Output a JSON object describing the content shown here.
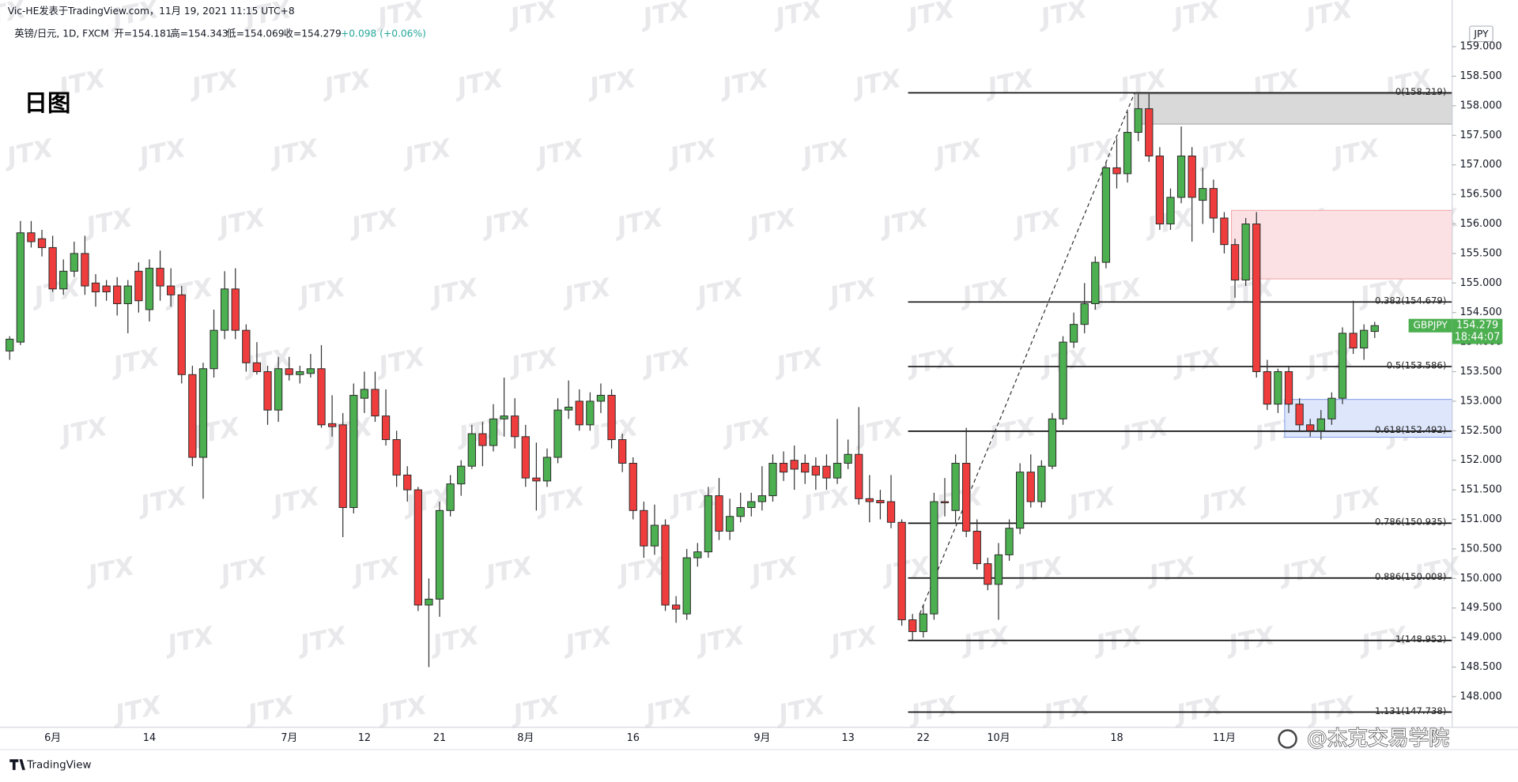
{
  "header": {
    "author_line": "Vic-HE发表于TradingView.com，11月 19, 2021 11:15 UTC+8",
    "symbol": "英镑/日元, 1D, FXCM",
    "ohlc": [
      "开=154.181",
      "高=154.343",
      "低=154.069",
      "收=154.279"
    ],
    "change": "+0.098 (+0.06%)",
    "currency": "JPY"
  },
  "watermark": "JTX",
  "footer": {
    "logo": "TradingView",
    "credit": "@杰克交易学院"
  },
  "chart_data": {
    "type": "candlestick",
    "title": "日图",
    "categories": [
      null,
      null,
      null,
      null,
      "6月",
      null,
      null,
      null,
      null,
      null,
      null,
      null,
      null,
      "14",
      null,
      null,
      null,
      null,
      null,
      null,
      null,
      null,
      null,
      null,
      null,
      null,
      "7月",
      null,
      null,
      null,
      null,
      null,
      null,
      "12",
      null,
      null,
      null,
      null,
      null,
      null,
      "21",
      null,
      null,
      null,
      null,
      null,
      null,
      null,
      "8月",
      null,
      null,
      null,
      null,
      null,
      null,
      null,
      null,
      null,
      "16",
      null,
      null,
      null,
      null,
      null,
      null,
      null,
      null,
      null,
      null,
      null,
      "9月",
      null,
      null,
      null,
      null,
      null,
      null,
      null,
      "13",
      null,
      null,
      null,
      null,
      null,
      null,
      "22",
      null,
      null,
      null,
      null,
      null,
      null,
      "10月",
      null,
      null,
      null,
      null,
      null,
      null,
      null,
      null,
      null,
      null,
      "18",
      null,
      null,
      null,
      null,
      null,
      null,
      null,
      null,
      null,
      "11月",
      null,
      null,
      null,
      null,
      null,
      null,
      null,
      null,
      null,
      null,
      null,
      null,
      null,
      null
    ],
    "open": [
      153.85,
      154.0,
      155.85,
      155.75,
      155.6,
      154.9,
      155.2,
      155.5,
      155.0,
      154.95,
      154.95,
      154.65,
      155.2,
      154.55,
      155.25,
      154.95,
      154.8,
      153.45,
      152.05,
      153.55,
      154.2,
      154.9,
      154.2,
      153.65,
      153.5,
      152.85,
      153.55,
      153.45,
      153.47,
      153.55,
      152.62,
      152.6,
      151.2,
      153.05,
      153.2,
      152.75,
      152.35,
      151.75,
      151.5,
      149.55,
      149.65,
      151.15,
      151.6,
      151.9,
      152.45,
      152.25,
      152.7,
      152.75,
      152.4,
      151.7,
      151.65,
      152.05,
      152.85,
      153.0,
      152.6,
      153.0,
      153.1,
      152.35,
      151.95,
      151.15,
      150.55,
      150.9,
      149.55,
      149.4,
      150.35,
      150.45,
      151.4,
      150.8,
      151.05,
      151.2,
      151.3,
      151.4,
      151.95,
      152.0,
      151.95,
      151.9,
      151.9,
      151.7,
      151.95,
      152.1,
      151.35,
      151.32,
      151.3,
      150.95,
      149.3,
      149.1,
      149.4,
      151.3,
      151.15,
      151.95,
      150.8,
      150.25,
      149.9,
      150.4,
      150.85,
      151.8,
      151.3,
      151.9,
      152.7,
      154.0,
      154.3,
      154.65,
      155.35,
      156.95,
      156.85,
      157.55,
      157.95,
      157.15,
      156.0,
      156.45,
      157.15,
      156.4,
      156.6,
      156.1,
      155.65,
      155.05,
      156.0,
      153.5,
      152.95,
      153.5,
      152.95,
      152.6,
      152.5,
      152.7,
      153.05,
      154.15,
      153.9,
      154.181
    ],
    "high": [
      154.1,
      156.05,
      156.05,
      155.9,
      155.8,
      155.4,
      155.7,
      155.8,
      155.15,
      155.05,
      155.1,
      155.05,
      155.35,
      155.4,
      155.55,
      155.25,
      154.95,
      153.6,
      153.65,
      154.55,
      155.2,
      155.25,
      154.3,
      154.0,
      153.6,
      153.75,
      153.75,
      153.6,
      153.8,
      153.95,
      153.1,
      152.8,
      153.3,
      153.5,
      153.5,
      153.2,
      152.5,
      151.9,
      151.55,
      150.0,
      151.3,
      151.75,
      152.0,
      152.6,
      152.65,
      152.95,
      153.4,
      153.05,
      152.6,
      152.3,
      152.2,
      153.05,
      153.35,
      153.2,
      153.15,
      153.3,
      153.2,
      152.45,
      152.05,
      151.3,
      151.25,
      151.0,
      149.7,
      150.5,
      150.6,
      151.55,
      151.7,
      151.35,
      151.45,
      151.45,
      151.9,
      152.1,
      152.15,
      152.25,
      152.1,
      152.05,
      152.1,
      152.7,
      152.35,
      152.9,
      151.75,
      151.5,
      151.75,
      151.0,
      149.4,
      149.55,
      151.45,
      151.7,
      152.1,
      152.55,
      151.0,
      150.35,
      150.6,
      151.0,
      151.95,
      152.1,
      152.0,
      152.8,
      154.1,
      154.5,
      155.0,
      155.45,
      157.05,
      157.45,
      157.9,
      158.2,
      158.2,
      157.3,
      156.6,
      157.65,
      157.3,
      156.95,
      156.75,
      156.2,
      155.75,
      156.1,
      156.2,
      153.7,
      153.55,
      153.6,
      153.05,
      152.7,
      152.85,
      153.15,
      154.25,
      154.7,
      154.3,
      154.343
    ],
    "low": [
      153.7,
      153.95,
      155.6,
      155.45,
      154.85,
      154.8,
      155.1,
      154.8,
      154.6,
      154.7,
      154.45,
      154.15,
      154.5,
      154.35,
      154.7,
      154.6,
      153.3,
      151.9,
      151.35,
      153.4,
      154.05,
      154.05,
      153.5,
      153.45,
      152.6,
      152.65,
      153.35,
      153.3,
      153.4,
      152.55,
      152.4,
      150.7,
      151.1,
      152.8,
      152.65,
      152.25,
      151.55,
      151.3,
      149.45,
      148.5,
      149.35,
      151.05,
      151.4,
      151.85,
      151.9,
      152.15,
      152.4,
      152.2,
      151.55,
      151.15,
      151.55,
      151.95,
      152.7,
      152.5,
      152.5,
      152.8,
      152.2,
      151.8,
      151.0,
      150.35,
      150.4,
      149.45,
      149.25,
      149.3,
      150.2,
      150.35,
      150.65,
      150.65,
      150.95,
      151.05,
      151.15,
      151.3,
      151.65,
      151.5,
      151.6,
      151.5,
      151.5,
      151.6,
      151.85,
      151.25,
      150.95,
      151.0,
      150.85,
      149.2,
      148.95,
      149.0,
      149.3,
      151.05,
      150.95,
      150.7,
      150.15,
      149.8,
      149.3,
      150.3,
      150.75,
      151.2,
      151.2,
      151.85,
      152.6,
      153.9,
      154.15,
      154.55,
      155.25,
      156.6,
      156.7,
      157.4,
      157.05,
      155.9,
      155.9,
      156.35,
      155.7,
      156.0,
      155.85,
      155.5,
      154.75,
      154.95,
      153.4,
      152.85,
      152.8,
      152.8,
      152.5,
      152.4,
      152.35,
      152.6,
      152.95,
      153.8,
      153.7,
      154.069
    ],
    "close": [
      154.05,
      155.85,
      155.7,
      155.6,
      154.9,
      155.2,
      155.5,
      154.95,
      154.85,
      154.85,
      154.65,
      154.95,
      154.7,
      155.25,
      154.95,
      154.8,
      153.45,
      152.05,
      153.55,
      154.2,
      154.9,
      154.2,
      153.65,
      153.5,
      152.85,
      153.55,
      153.45,
      153.5,
      153.55,
      152.6,
      152.57,
      151.2,
      153.1,
      153.2,
      152.75,
      152.35,
      151.75,
      151.5,
      149.55,
      149.65,
      151.15,
      151.6,
      151.9,
      152.45,
      152.25,
      152.7,
      152.75,
      152.4,
      151.7,
      151.65,
      152.05,
      152.85,
      152.9,
      152.6,
      153.0,
      153.1,
      152.35,
      151.95,
      151.15,
      150.55,
      150.9,
      149.55,
      149.48,
      150.35,
      150.45,
      151.4,
      150.8,
      151.05,
      151.2,
      151.3,
      151.4,
      151.95,
      151.8,
      151.85,
      151.8,
      151.75,
      151.7,
      151.95,
      152.1,
      151.35,
      151.3,
      151.28,
      150.95,
      149.3,
      149.1,
      149.4,
      151.3,
      151.28,
      151.95,
      150.8,
      150.25,
      149.9,
      150.4,
      150.85,
      151.8,
      151.3,
      151.9,
      152.7,
      154.0,
      154.3,
      154.65,
      155.35,
      156.95,
      156.85,
      157.55,
      157.95,
      157.15,
      156.0,
      156.45,
      157.15,
      156.45,
      156.6,
      156.1,
      155.65,
      155.05,
      156.0,
      153.5,
      152.95,
      153.5,
      152.95,
      152.6,
      152.5,
      152.7,
      153.05,
      154.15,
      153.9,
      154.2,
      154.279
    ],
    "up_color": "#4caf50",
    "down_color": "#ef3d3d",
    "ylim": [
      147.48,
      159.79
    ],
    "yticks": [
      {
        "value": 148,
        "label": "148.000"
      },
      {
        "value": 148.5,
        "label": "148.500"
      },
      {
        "value": 149,
        "label": "149.000"
      },
      {
        "value": 149.5,
        "label": "149.500"
      },
      {
        "value": 150,
        "label": "150.000"
      },
      {
        "value": 150.5,
        "label": "150.500"
      },
      {
        "value": 151,
        "label": "151.000"
      },
      {
        "value": 151.5,
        "label": "151.500"
      },
      {
        "value": 152,
        "label": "152.000"
      },
      {
        "value": 152.5,
        "label": "152.500"
      },
      {
        "value": 153,
        "label": "153.000"
      },
      {
        "value": 153.5,
        "label": "153.500"
      },
      {
        "value": 154,
        "label": "154.000"
      },
      {
        "value": 154.5,
        "label": "154.500"
      },
      {
        "value": 155,
        "label": "155.000"
      },
      {
        "value": 155.5,
        "label": "155.500"
      },
      {
        "value": 156,
        "label": "156.000"
      },
      {
        "value": 156.5,
        "label": "156.500"
      },
      {
        "value": 157,
        "label": "157.000"
      },
      {
        "value": 157.5,
        "label": "157.500"
      },
      {
        "value": 158,
        "label": "158.000"
      },
      {
        "value": 158.5,
        "label": "158.500"
      },
      {
        "value": 159,
        "label": "159.000"
      }
    ],
    "grid": false,
    "fib_levels": [
      {
        "value": 158.219,
        "label": "0(158.219)"
      },
      {
        "value": 154.679,
        "label": "0.382(154.679)"
      },
      {
        "value": 153.586,
        "label": "0.5(153.586)"
      },
      {
        "value": 152.492,
        "label": "0.618(152.492)"
      },
      {
        "value": 150.935,
        "label": "0.786(150.935)"
      },
      {
        "value": 150.008,
        "label": "0.886(150.008)"
      },
      {
        "value": 148.952,
        "label": "1(148.952)"
      },
      {
        "value": 147.738,
        "label": "1.131(147.738)"
      }
    ],
    "zones": [
      {
        "top": 158.2,
        "bottom": 157.69,
        "color": "#d9d9d9"
      },
      {
        "top": 156.23,
        "bottom": 155.07,
        "color": "#fbe1e3"
      },
      {
        "top": 153.03,
        "bottom": 152.39,
        "color": "#dde6fb"
      }
    ],
    "trendline": {
      "start": 149.4,
      "end": 158.219
    },
    "price_tag": {
      "symbol": "GBPJPY",
      "price": 154.279,
      "countdown": "18:44:07",
      "color": "#4caf50"
    }
  }
}
